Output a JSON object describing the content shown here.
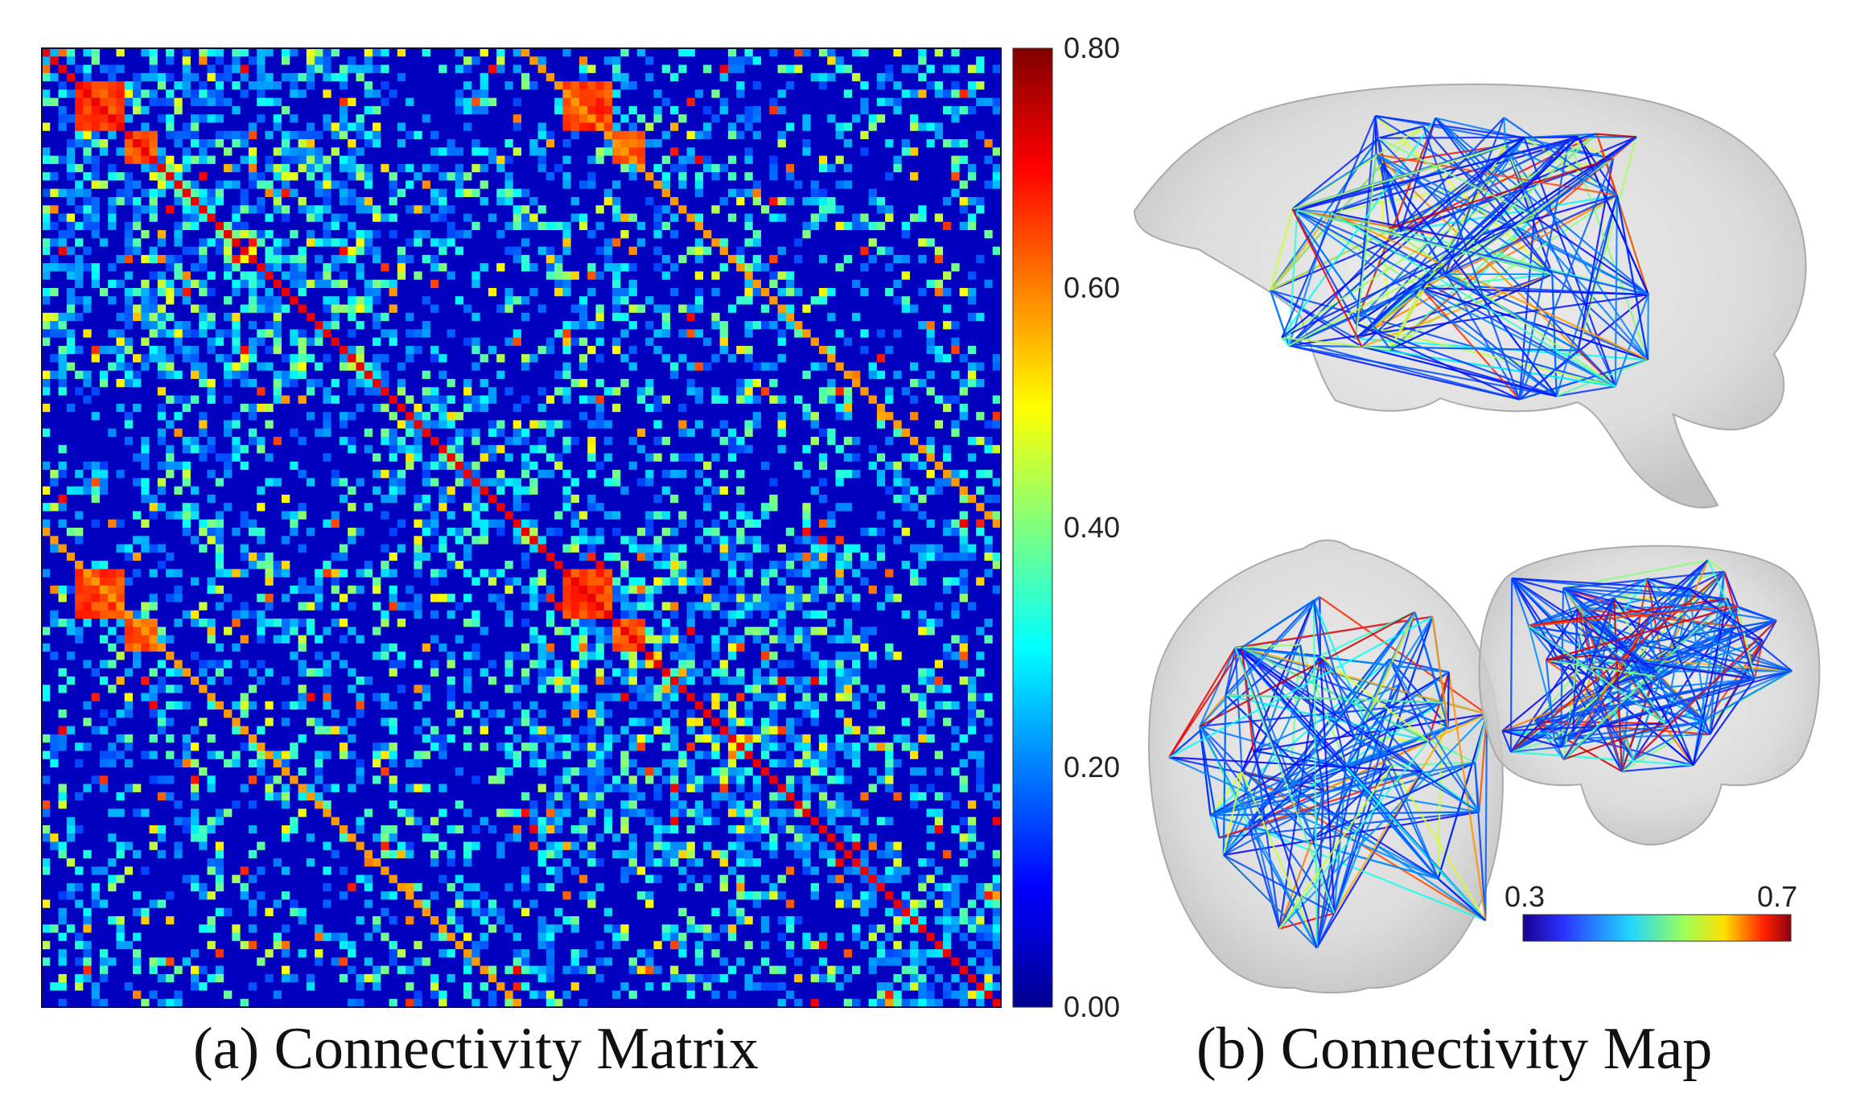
{
  "captions": {
    "a": "(a) Connectivity Matrix",
    "b": "(b) Connectivity Map"
  },
  "chart_data": [
    {
      "panel": "a",
      "type": "heatmap",
      "title": "",
      "xlabel": "",
      "ylabel": "",
      "size": 116,
      "colormap": "jet",
      "value_range": [
        0.0,
        0.8
      ],
      "colorbar": {
        "placement": "right",
        "ticks": [
          "0.80",
          "0.60",
          "0.40",
          "0.20",
          "0.00"
        ],
        "tick_values": [
          0.8,
          0.6,
          0.4,
          0.2,
          0.0
        ]
      },
      "diagonal_value": 0.75,
      "high_blocks": [
        {
          "rows": [
            4,
            9
          ],
          "cols": [
            4,
            9
          ],
          "value": 0.72
        },
        {
          "rows": [
            4,
            9
          ],
          "cols": [
            63,
            68
          ],
          "value": 0.72
        },
        {
          "rows": [
            63,
            68
          ],
          "cols": [
            4,
            9
          ],
          "value": 0.72
        },
        {
          "rows": [
            63,
            68
          ],
          "cols": [
            63,
            68
          ],
          "value": 0.72
        },
        {
          "rows": [
            10,
            13
          ],
          "cols": [
            10,
            13
          ],
          "value": 0.7
        },
        {
          "rows": [
            10,
            13
          ],
          "cols": [
            69,
            72
          ],
          "value": 0.7
        },
        {
          "rows": [
            69,
            72
          ],
          "cols": [
            10,
            13
          ],
          "value": 0.7
        },
        {
          "rows": [
            69,
            72
          ],
          "cols": [
            69,
            72
          ],
          "value": 0.7
        }
      ],
      "dense_blocks": [
        {
          "rows": [
            42,
            54
          ],
          "cols": [
            42,
            54
          ]
        },
        {
          "rows": [
            100,
            115
          ],
          "cols": [
            100,
            115
          ]
        },
        {
          "rows": [
            0,
            40
          ],
          "cols": [
            0,
            40
          ]
        },
        {
          "rows": [
            58,
            98
          ],
          "cols": [
            58,
            98
          ]
        }
      ]
    },
    {
      "panel": "b",
      "type": "other",
      "title": "",
      "views": [
        "sagittal",
        "axial",
        "coronal"
      ],
      "colorbar": {
        "placement": "bottom-right",
        "min_label": "0.3",
        "max_label": "0.7",
        "range": [
          0.3,
          0.7
        ]
      }
    }
  ]
}
